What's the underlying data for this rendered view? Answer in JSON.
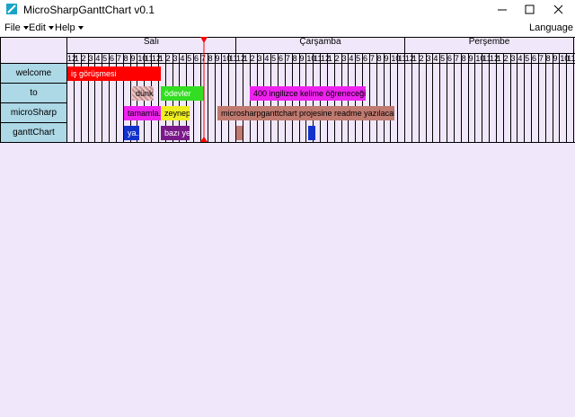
{
  "window": {
    "title": "MicroSharpGanttChart v0.1"
  },
  "menu": {
    "items": [
      "File",
      "Edit",
      "Help"
    ],
    "language": "Language"
  },
  "gantt": {
    "days": [
      "Salı",
      "Çarşamba",
      "Perşembe"
    ],
    "hours": [
      "12",
      "1",
      "2",
      "3",
      "4",
      "5",
      "6",
      "7",
      "8",
      "9",
      "10",
      "11",
      "12",
      "1",
      "2",
      "3",
      "4",
      "5",
      "6",
      "7",
      "8",
      "9",
      "10",
      "11"
    ],
    "rows": [
      {
        "label": "welcome",
        "tasks": [
          "iş görüşmesi"
        ]
      },
      {
        "label": "to",
        "tasks": [
          "dünk..",
          "ödevler",
          "400 ingilizce kelime öğreneceğim"
        ]
      },
      {
        "label": "microSharp",
        "tasks": [
          "tamamla..",
          "zeynep'..",
          "microsharpganttchart projesine readme yazılacak"
        ]
      },
      {
        "label": "ganttChart",
        "tasks": [
          "ya..",
          "bazı yer"
        ]
      }
    ]
  }
}
